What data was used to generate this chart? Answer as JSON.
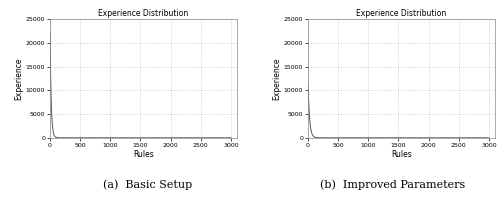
{
  "title": "Experience Distribution",
  "xlabel": "Rules",
  "ylabel": "Experience",
  "xlim": [
    0,
    3100
  ],
  "ylim": [
    0,
    25000
  ],
  "xticks": [
    0,
    500,
    1000,
    1500,
    2000,
    2500,
    3000
  ],
  "yticks": [
    0,
    5000,
    10000,
    15000,
    20000,
    25000
  ],
  "subplot_a_label": "(a)  Basic Setup",
  "subplot_b_label": "(b)  Improved Parameters",
  "subplot_a_peak": 23500,
  "subplot_b_peak": 11800,
  "line_color": "#555555",
  "grid_color": "#bbbbbb",
  "bg_color": "#ffffff",
  "decay_rate_a": 0.055,
  "decay_rate_b": 0.04,
  "n_points": 3000
}
